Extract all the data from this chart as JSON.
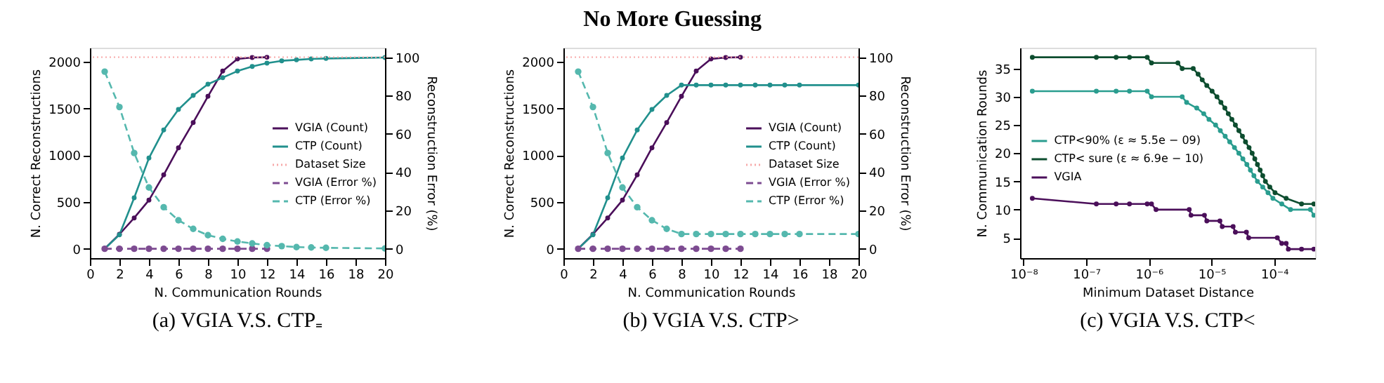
{
  "chart_data": [
    {
      "type": "line",
      "title": "(a) VGIA V.S. CTP₌",
      "annotations": [
        "No More Guessing"
      ],
      "xlabel": "N. Communication Rounds",
      "ylabel": "N. Correct Reconstructions",
      "y2label": "Reconstruction Error (%)",
      "xlim": [
        0,
        20
      ],
      "xticks": [
        0,
        2,
        4,
        6,
        8,
        10,
        12,
        14,
        16,
        18,
        20
      ],
      "ylim": [
        -100,
        2150
      ],
      "yticks": [
        0,
        500,
        1000,
        1500,
        2000
      ],
      "y2lim": [
        -4.88,
        104.98
      ],
      "y2ticks": [
        0,
        20,
        40,
        60,
        80,
        100
      ],
      "legend": "right",
      "marker": "circle",
      "ref_lines": [
        {
          "axis": "y",
          "value": 2048,
          "label": "Dataset Size",
          "color": "#f7a8a8",
          "line_style": "dotted"
        }
      ],
      "series": [
        {
          "name": "VGIA (Count)",
          "color": "#4b0f5a",
          "line_style": "solid",
          "x": [
            1,
            2,
            3,
            4,
            5,
            6,
            7,
            8,
            9,
            10,
            11,
            12
          ],
          "values": [
            0,
            155,
            330,
            520,
            790,
            1080,
            1350,
            1630,
            1900,
            2030,
            2045,
            2048
          ]
        },
        {
          "name": "CTP (Count)",
          "color": "#21908d",
          "line_style": "solid",
          "x": [
            1,
            2,
            3,
            4,
            5,
            6,
            7,
            8,
            9,
            10,
            11,
            12,
            13,
            14,
            15,
            16,
            20
          ],
          "values": [
            0,
            150,
            545,
            970,
            1270,
            1490,
            1640,
            1760,
            1830,
            1900,
            1950,
            1985,
            2010,
            2020,
            2030,
            2035,
            2045
          ]
        },
        {
          "name": "VGIA (Error %)",
          "color": "#7d4b91",
          "line_style": "dashed",
          "axis": "y2",
          "x": [
            1,
            2,
            3,
            4,
            5,
            6,
            7,
            8,
            9,
            10,
            11,
            12
          ],
          "values": [
            0,
            0,
            0,
            0,
            0,
            0,
            0,
            0,
            0,
            0,
            0,
            0
          ]
        },
        {
          "name": "CTP (Error %)",
          "color": "#55b8ae",
          "line_style": "dashed",
          "axis": "y2",
          "x": [
            1,
            2,
            3,
            4,
            5,
            6,
            7,
            8,
            9,
            10,
            11,
            12,
            13,
            14,
            15,
            16,
            20
          ],
          "values": [
            92.5,
            74,
            50,
            32,
            21.7,
            14.9,
            10.4,
            7.1,
            5.2,
            3.8,
            2.8,
            1.9,
            1.4,
            0.9,
            0.7,
            0.5,
            0.2
          ]
        }
      ]
    },
    {
      "type": "line",
      "title": "(b) VGIA V.S. CTP>",
      "xlabel": "N. Communication Rounds",
      "ylabel": "N. Correct Reconstructions",
      "y2label": "Reconstruction Error (%)",
      "xlim": [
        0,
        20
      ],
      "xticks": [
        0,
        2,
        4,
        6,
        8,
        10,
        12,
        14,
        16,
        18,
        20
      ],
      "ylim": [
        -100,
        2150
      ],
      "yticks": [
        0,
        500,
        1000,
        1500,
        2000
      ],
      "y2lim": [
        -4.88,
        104.98
      ],
      "y2ticks": [
        0,
        20,
        40,
        60,
        80,
        100
      ],
      "legend": "right",
      "marker": "circle",
      "ref_lines": [
        {
          "axis": "y",
          "value": 2048,
          "label": "Dataset Size",
          "color": "#f7a8a8",
          "line_style": "dotted"
        }
      ],
      "series": [
        {
          "name": "VGIA (Count)",
          "color": "#4b0f5a",
          "line_style": "solid",
          "x": [
            1,
            2,
            3,
            4,
            5,
            6,
            7,
            8,
            9,
            10,
            11,
            12
          ],
          "values": [
            0,
            155,
            330,
            520,
            790,
            1080,
            1350,
            1630,
            1900,
            2030,
            2045,
            2048
          ]
        },
        {
          "name": "CTP (Count)",
          "color": "#21908d",
          "line_style": "solid",
          "x": [
            1,
            2,
            3,
            4,
            5,
            6,
            7,
            8,
            9,
            10,
            11,
            12,
            13,
            14,
            15,
            16,
            20
          ],
          "values": [
            0,
            150,
            545,
            970,
            1270,
            1490,
            1640,
            1750,
            1750,
            1750,
            1750,
            1750,
            1750,
            1750,
            1750,
            1750,
            1750
          ]
        },
        {
          "name": "VGIA (Error %)",
          "color": "#7d4b91",
          "line_style": "dashed",
          "axis": "y2",
          "x": [
            1,
            2,
            3,
            4,
            5,
            6,
            7,
            8,
            9,
            10,
            11,
            12
          ],
          "values": [
            0,
            0,
            0,
            0,
            0,
            0,
            0,
            0,
            0,
            0,
            0,
            0
          ]
        },
        {
          "name": "CTP (Error %)",
          "color": "#55b8ae",
          "line_style": "dashed",
          "axis": "y2",
          "x": [
            1,
            2,
            3,
            4,
            5,
            6,
            7,
            8,
            9,
            10,
            11,
            12,
            13,
            14,
            15,
            16,
            20
          ],
          "values": [
            92.5,
            74,
            50,
            32,
            21.7,
            14.9,
            10.4,
            7.7,
            7.7,
            7.7,
            7.7,
            7.7,
            7.7,
            7.7,
            7.7,
            7.7,
            7.7
          ]
        }
      ]
    },
    {
      "type": "line",
      "title": "(c) VGIA V.S. CTP<",
      "xlabel": "Minimum Dataset Distance",
      "ylabel": "N. Communication Rounds",
      "log": "x",
      "xlim": [
        8.8e-09,
        0.00045
      ],
      "xticks": [
        {
          "value": 1e-08,
          "label": "10⁻⁸"
        },
        {
          "value": 1e-07,
          "label": "10⁻⁷"
        },
        {
          "value": 1e-06,
          "label": "10⁻⁶"
        },
        {
          "value": 1e-05,
          "label": "10⁻⁵"
        },
        {
          "value": 0.0001,
          "label": "10⁻⁴"
        }
      ],
      "ylim": [
        1.4,
        38.7
      ],
      "yticks": [
        5,
        10,
        15,
        20,
        25,
        30,
        35
      ],
      "legend": "left",
      "marker": "circle",
      "series": [
        {
          "name": "CTP<90% (ε ≈ 5.5e − 09)",
          "color": "#2a9d8f",
          "line_style": "solid",
          "x": [
            1.38e-08,
            1.45e-07,
            3e-07,
            4.9e-07,
            9.4e-07,
            1.1e-06,
            3.4e-06,
            4e-06,
            5.8e-06,
            7.5e-06,
            9.1e-06,
            1.16e-05,
            1.38e-05,
            1.65e-05,
            1.95e-05,
            2.32e-05,
            2.73e-05,
            3.16e-05,
            3.66e-05,
            4.17e-05,
            4.74e-05,
            5.4e-05,
            6.56e-05,
            7.96e-05,
            9.53e-05,
            0.000132,
            0.000182,
            0.000378,
            0.00043
          ],
          "values": [
            31,
            31,
            31,
            31,
            31,
            30,
            30,
            29,
            28,
            27,
            26,
            25,
            24,
            23,
            22,
            21,
            20,
            19,
            18,
            17,
            16,
            15,
            14,
            13,
            12,
            11,
            10,
            10,
            9
          ]
        },
        {
          "name": "CTP< sure (ε ≈ 6.9e − 10)",
          "color": "#0d4d2f",
          "line_style": "solid",
          "x": [
            1.38e-08,
            1.45e-07,
            3e-07,
            4.9e-07,
            9.4e-07,
            1.1e-06,
            2.9e-06,
            3.4e-06,
            5.1e-06,
            6.1e-06,
            7.1e-06,
            8.4e-06,
            1.02e-05,
            1.22e-05,
            1.41e-05,
            1.63e-05,
            1.85e-05,
            2.11e-05,
            2.4e-05,
            2.73e-05,
            3.11e-05,
            3.48e-05,
            3.97e-05,
            4.45e-05,
            4.9e-05,
            5.4e-05,
            5.96e-05,
            6.56e-05,
            7.23e-05,
            8.51e-05,
            0.000103,
            0.000155,
            0.000273,
            0.00043
          ],
          "values": [
            37,
            37,
            37,
            37,
            37,
            36,
            36,
            35,
            35,
            34,
            33,
            32,
            31,
            30,
            29,
            28,
            27,
            26,
            25,
            24,
            23,
            22,
            21,
            20,
            19,
            18,
            17,
            16,
            15,
            14,
            13,
            12,
            11,
            11
          ]
        },
        {
          "name": "VGIA",
          "color": "#4b0f5a",
          "line_style": "solid",
          "x": [
            1.38e-08,
            1.45e-07,
            3e-07,
            4.9e-07,
            9.4e-07,
            1.1e-06,
            1.3e-06,
            4.4e-06,
            4.7e-06,
            7.7e-06,
            8.4e-06,
            1.36e-05,
            1.48e-05,
            2.21e-05,
            2.4e-05,
            3.6e-05,
            3.91e-05,
            0.000112,
            0.000132,
            0.000155,
            0.000168,
            0.000273,
            0.00043
          ],
          "values": [
            12,
            11,
            11,
            11,
            11,
            11,
            10,
            10,
            9,
            9,
            8,
            8,
            7,
            7,
            6,
            6,
            5,
            5,
            4,
            4,
            3,
            3,
            3
          ]
        }
      ]
    }
  ]
}
